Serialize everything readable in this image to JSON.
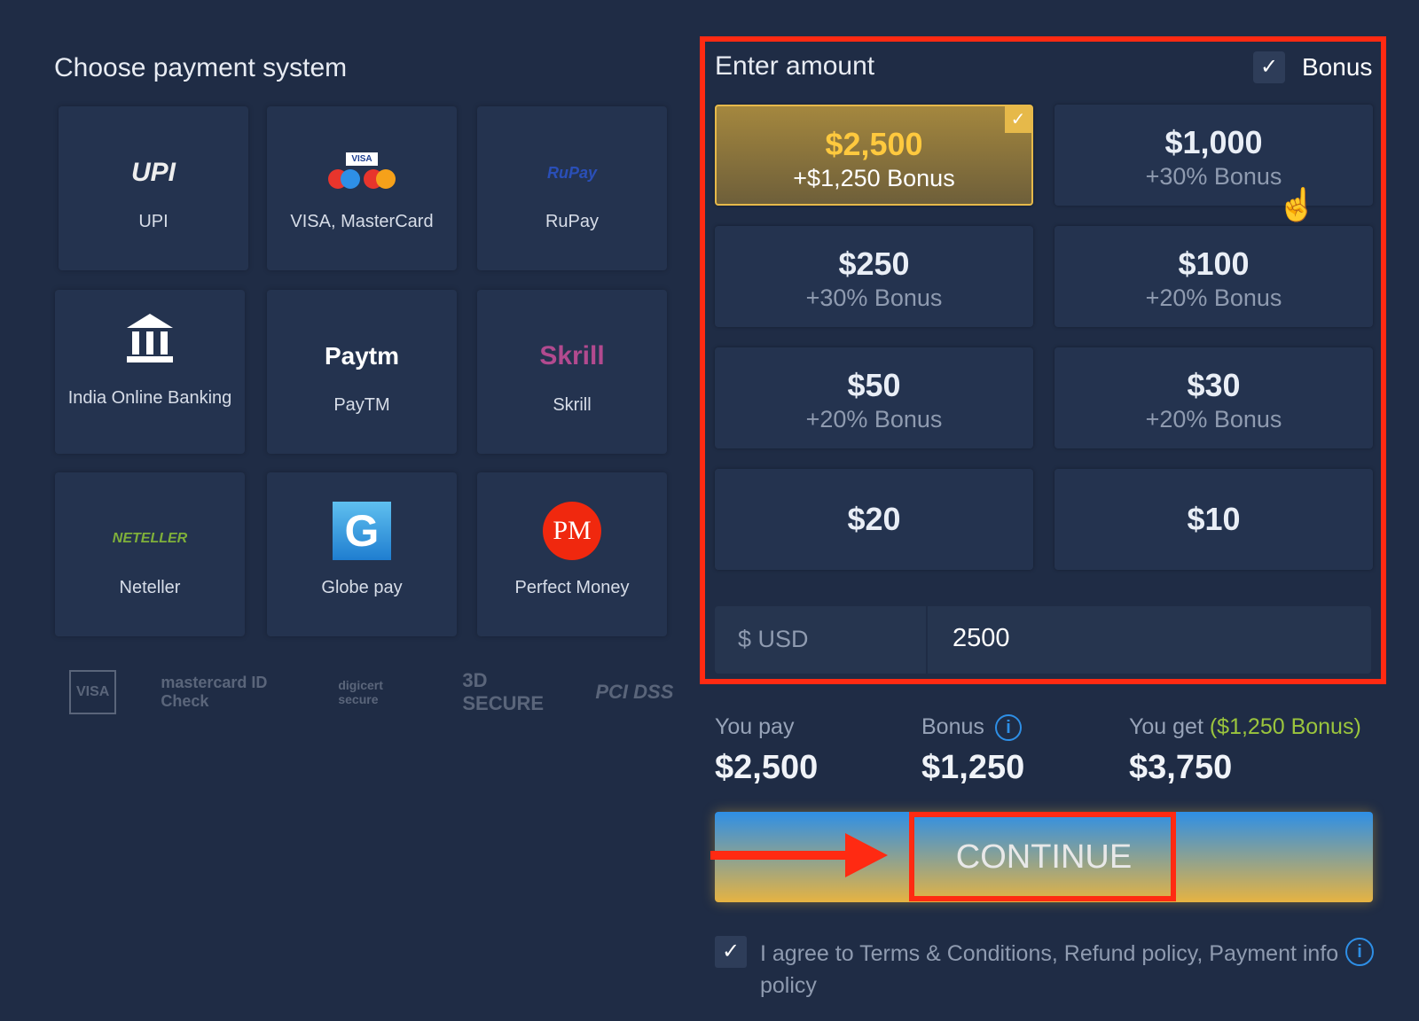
{
  "left": {
    "title": "Choose payment system",
    "methods": [
      {
        "label": "UPI",
        "logo": "UPI"
      },
      {
        "label": "VISA, MasterCard",
        "logo": "VISA"
      },
      {
        "label": "RuPay",
        "logo": "RuPay"
      },
      {
        "label": "India Online Banking",
        "logo": "bank-icon"
      },
      {
        "label": "PayTM",
        "logo": "Paytm"
      },
      {
        "label": "Skrill",
        "logo": "Skrill"
      },
      {
        "label": "Neteller",
        "logo": "NETELLER"
      },
      {
        "label": "Globe pay",
        "logo": "G"
      },
      {
        "label": "Perfect Money",
        "logo": "PM"
      }
    ],
    "seals": [
      "VISA",
      "mastercard ID Check",
      "digicert secure",
      "3D SECURE",
      "PCI DSS"
    ]
  },
  "amount": {
    "title": "Enter amount",
    "bonus_label": "Bonus",
    "bonus_checked": true,
    "options": [
      {
        "amount": "$2,500",
        "bonus": "+$1,250 Bonus",
        "selected": true
      },
      {
        "amount": "$1,000",
        "bonus": "+30% Bonus"
      },
      {
        "amount": "$250",
        "bonus": "+30% Bonus"
      },
      {
        "amount": "$100",
        "bonus": "+20% Bonus"
      },
      {
        "amount": "$50",
        "bonus": "+20% Bonus"
      },
      {
        "amount": "$30",
        "bonus": "+20% Bonus"
      },
      {
        "amount": "$20",
        "bonus": ""
      },
      {
        "amount": "$10",
        "bonus": ""
      }
    ],
    "currency": "$ USD",
    "value": "2500"
  },
  "summary": {
    "pay_label": "You pay",
    "pay": "$2,500",
    "bonus_label": "Bonus",
    "bonus": "$1,250",
    "get_label": "You get",
    "get_bonus": "($1,250 Bonus)",
    "get": "$3,750"
  },
  "continue_label": "CONTINUE",
  "agree": {
    "checked": true,
    "line1": "I agree to Terms & Conditions, Refund policy, Payment info",
    "line2": "policy"
  },
  "colors": {
    "accent_red": "#ff2a12",
    "gold": "#ffc93e",
    "green": "#9bc53d",
    "blue": "#2e8fe6"
  }
}
